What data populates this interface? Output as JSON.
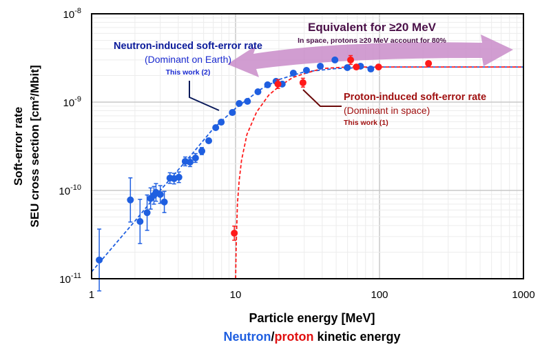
{
  "chart_data": {
    "type": "scatter",
    "xscale": "log",
    "yscale": "log",
    "xlim": [
      1,
      1000
    ],
    "ylim": [
      1e-11,
      1e-08
    ],
    "grid": true,
    "xlabel": "Particle energy [MeV]",
    "xlabel2": {
      "neutron": "Neutron",
      "slash": "/",
      "proton": "proton",
      "rest": " kinetic energy"
    },
    "ylabel_line1": "Soft-error rate",
    "ylabel_line2": "SEU cross section [cm²/Mbit]",
    "xticks": [
      {
        "v": 1,
        "label": "1"
      },
      {
        "v": 10,
        "label": "10"
      },
      {
        "v": 100,
        "label": "100"
      },
      {
        "v": 1000,
        "label": "1000"
      }
    ],
    "yticks": [
      {
        "v": 1e-08,
        "base": "10",
        "exp": "-8"
      },
      {
        "v": 1e-09,
        "base": "10",
        "exp": "-9"
      },
      {
        "v": 1e-10,
        "base": "10",
        "exp": "-10"
      },
      {
        "v": 1e-11,
        "base": "10",
        "exp": "-11"
      }
    ],
    "colors": {
      "neutron": "#1f5fe0",
      "proton": "#ff1a1a",
      "neutron_text": "#0a1a9a",
      "proton_text": "#a01010",
      "arrow": "#c98cc9",
      "arrow_text": "#4a1048"
    },
    "series": [
      {
        "name": "Neutron-induced soft-error rate",
        "points": [
          [
            1.13,
            1.63e-11,
            0.35
          ],
          [
            1.86,
            7.8e-11,
            0.25
          ],
          [
            2.17,
            4.45e-11,
            0.25
          ],
          [
            2.43,
            5.6e-11,
            0.2
          ],
          [
            2.57,
            8.1e-11,
            0.12
          ],
          [
            2.71,
            8.8e-11,
            0.1
          ],
          [
            2.8,
            9.5e-11,
            0.1
          ],
          [
            3.0,
            9e-11,
            0.1
          ],
          [
            3.2,
            7.4e-11,
            0.12
          ],
          [
            3.5,
            1.38e-10,
            0.06
          ],
          [
            3.74,
            1.36e-10,
            0.06
          ],
          [
            4.04,
            1.41e-10,
            0.06
          ],
          [
            4.47,
            2.13e-10,
            0.05
          ],
          [
            4.83,
            2.09e-10,
            0.05
          ],
          [
            5.27,
            2.33e-10,
            0.05
          ],
          [
            5.83,
            2.79e-10,
            0.04
          ],
          [
            6.51,
            3.65e-10,
            0
          ],
          [
            7.28,
            5.14e-10,
            0
          ],
          [
            7.95,
            5.93e-10,
            0
          ],
          [
            9.5,
            7.63e-10,
            0
          ],
          [
            10.6,
            9.65e-10,
            0
          ],
          [
            12.1,
            1.02e-09,
            0
          ],
          [
            14.3,
            1.31e-09,
            0
          ],
          [
            16.7,
            1.57e-09,
            0
          ],
          [
            19.1,
            1.72e-09,
            0
          ],
          [
            21.1,
            1.6e-09,
            0
          ],
          [
            25.2,
            2.13e-09,
            0
          ],
          [
            31.1,
            2.29e-09,
            0
          ],
          [
            38.8,
            2.55e-09,
            0
          ],
          [
            49,
            3e-09,
            0
          ],
          [
            59.8,
            2.46e-09,
            0
          ],
          [
            73.8,
            2.55e-09,
            0
          ],
          [
            87,
            2.37e-09,
            0
          ]
        ],
        "fit": [
          [
            1,
            1.2e-11
          ],
          [
            2,
            4.5e-11
          ],
          [
            3,
            1e-10
          ],
          [
            5,
            2.6e-10
          ],
          [
            7,
            5e-10
          ],
          [
            10,
            8.5e-10
          ],
          [
            15,
            1.4e-09
          ],
          [
            20,
            1.8e-09
          ],
          [
            30,
            2.2e-09
          ],
          [
            50,
            2.4e-09
          ],
          [
            100,
            2.5e-09
          ],
          [
            1000,
            2.5e-09
          ]
        ]
      },
      {
        "name": "Proton-induced soft-error rate",
        "points": [
          [
            9.8,
            3.28e-11,
            0.08
          ],
          [
            19.7,
            1.6e-09,
            0.05
          ],
          [
            29.4,
            1.66e-09,
            0.05
          ],
          [
            63,
            3e-09,
            0.05
          ],
          [
            69,
            2.5e-09,
            0
          ],
          [
            98.5,
            2.5e-09,
            0
          ],
          [
            219,
            2.74e-09,
            0
          ]
        ],
        "fit": [
          [
            10.01,
            1e-11
          ],
          [
            10.1,
            2.3e-11
          ],
          [
            10.3,
            7e-11
          ],
          [
            10.6,
            1.3e-10
          ],
          [
            11,
            2.2e-10
          ],
          [
            12,
            4.3e-10
          ],
          [
            14,
            7.7e-10
          ],
          [
            17,
            1.2e-09
          ],
          [
            20,
            1.5e-09
          ],
          [
            25,
            1.9e-09
          ],
          [
            30,
            2.1e-09
          ],
          [
            40,
            2.4e-09
          ],
          [
            60,
            2.5e-09
          ],
          [
            1000,
            2.5e-09
          ]
        ]
      }
    ],
    "annotations": {
      "neutron": {
        "title": "Neutron-induced soft-error rate",
        "sub": "(Dominant on Earth)",
        "ref": "This work (2)"
      },
      "proton": {
        "title": "Proton-induced soft-error rate",
        "sub": "(Dominant in space)",
        "ref": "This work (1)"
      },
      "arrow": {
        "title": "Equivalent for ≥20 MeV",
        "sub": "In space, protons ≥20 MeV account for 80%"
      }
    }
  }
}
